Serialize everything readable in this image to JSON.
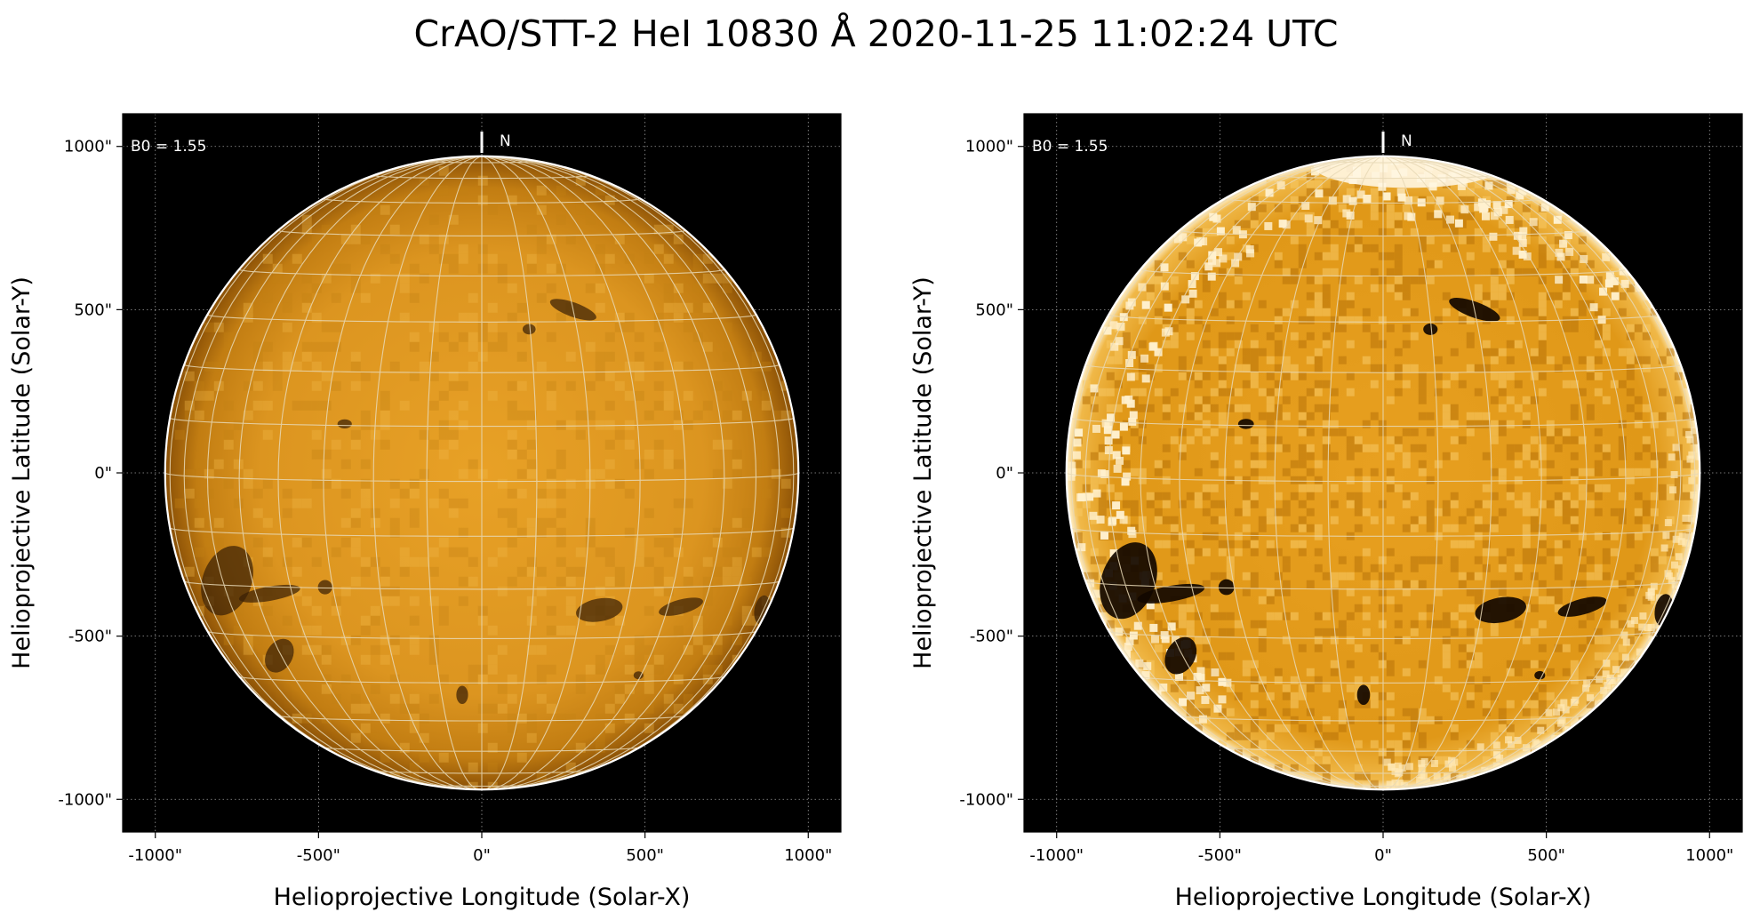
{
  "figure": {
    "title": "CrAO/STT-2 HeI 10830 Å 2020-11-25 11:02:24 UTC",
    "colors": {
      "background": "#ffffff",
      "plot_background": "#000000",
      "sun_mid": "#e39a1e",
      "sun_dark": "#a05f08",
      "grid": "#e8d9b6",
      "limb": "#ffffff"
    }
  },
  "panels": [
    {
      "id": "left",
      "variant": "raw",
      "b0_label": "B0 = 1.55",
      "north_label": "N",
      "xlabel": "Helioprojective Longitude (Solar-X)",
      "ylabel": "Helioprojective Latitude (Solar-Y)",
      "xticks": [
        "-1000\"",
        "-500\"",
        "0\"",
        "500\"",
        "1000\""
      ],
      "yticks": [
        "1000\"",
        "500\"",
        "0\"",
        "-500\"",
        "-1000\""
      ],
      "tick_values": [
        -1000,
        -500,
        0,
        500,
        1000
      ],
      "range_arcsec": [
        -1100,
        1100
      ],
      "solar_radius_arcsec": 970,
      "b0_deg": 1.55
    },
    {
      "id": "right",
      "variant": "enhanced",
      "b0_label": "B0 = 1.55",
      "north_label": "N",
      "xlabel": "Helioprojective Longitude (Solar-X)",
      "ylabel": "Helioprojective Latitude (Solar-Y)",
      "xticks": [
        "-1000\"",
        "-500\"",
        "0\"",
        "500\"",
        "1000\""
      ],
      "yticks": [
        "1000\"",
        "500\"",
        "0\"",
        "-500\"",
        "-1000\""
      ],
      "tick_values": [
        -1000,
        -500,
        0,
        500,
        1000
      ],
      "range_arcsec": [
        -1100,
        1100
      ],
      "solar_radius_arcsec": 970,
      "b0_deg": 1.55
    }
  ],
  "features": [
    {
      "name": "filament-sw-large",
      "x": -780,
      "y": -330,
      "rx": 75,
      "ry": 110,
      "rot": 20
    },
    {
      "name": "filament-sw-arm",
      "x": -650,
      "y": -370,
      "rx": 95,
      "ry": 22,
      "rot": -10
    },
    {
      "name": "filament-sw-tail",
      "x": -620,
      "y": -560,
      "rx": 40,
      "ry": 55,
      "rot": 30
    },
    {
      "name": "feature-ne",
      "x": 280,
      "y": 500,
      "rx": 75,
      "ry": 22,
      "rot": 20
    },
    {
      "name": "feature-ne-small",
      "x": 145,
      "y": 440,
      "rx": 20,
      "ry": 16,
      "rot": 0
    },
    {
      "name": "feature-se-1",
      "x": 360,
      "y": -420,
      "rx": 72,
      "ry": 35,
      "rot": -10
    },
    {
      "name": "feature-se-2",
      "x": 610,
      "y": -410,
      "rx": 70,
      "ry": 22,
      "rot": -15
    },
    {
      "name": "feature-s",
      "x": -60,
      "y": -680,
      "rx": 18,
      "ry": 28,
      "rot": 0
    },
    {
      "name": "feature-w-small",
      "x": -480,
      "y": -350,
      "rx": 22,
      "ry": 22,
      "rot": 0
    },
    {
      "name": "feature-mid",
      "x": -420,
      "y": 150,
      "rx": 22,
      "ry": 14,
      "rot": 0
    },
    {
      "name": "feature-e-limb",
      "x": 860,
      "y": -420,
      "rx": 25,
      "ry": 45,
      "rot": 10
    },
    {
      "name": "feature-se-small",
      "x": 480,
      "y": -620,
      "rx": 15,
      "ry": 12,
      "rot": 0
    }
  ]
}
